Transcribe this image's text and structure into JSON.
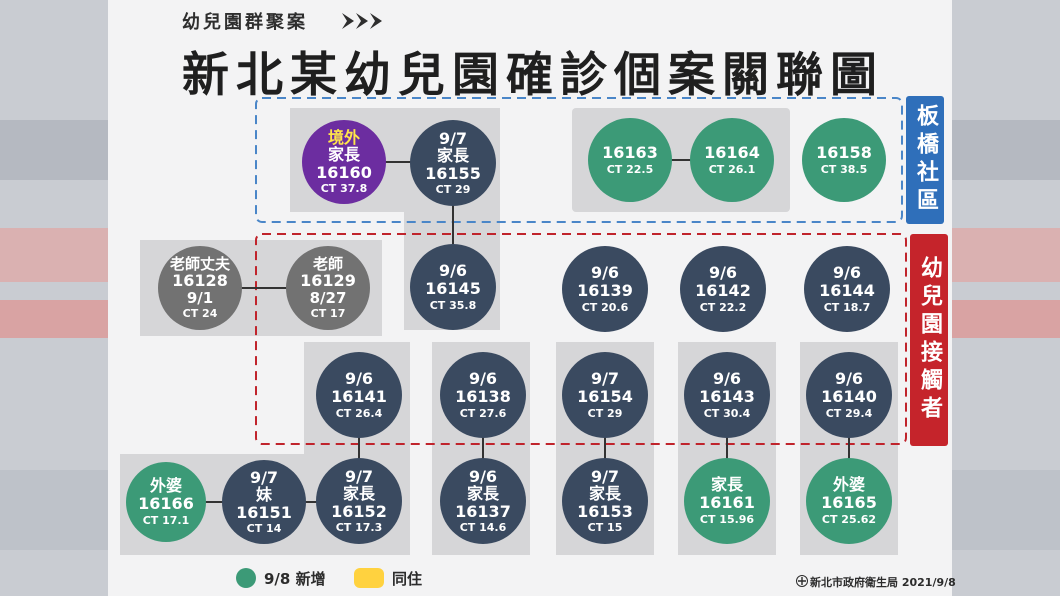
{
  "header": {
    "subtitle": "幼兒園群聚案",
    "title": "新北某幼兒園確診個案關聯圖"
  },
  "zones": {
    "banqiao": "板橋社區",
    "kindergarten": "幼兒園接觸者"
  },
  "nodes": {
    "n16160": {
      "l0": "境外",
      "l1": "家長",
      "l2": "16160",
      "ct": "CT 37.8"
    },
    "n16155": {
      "l1": "9/7",
      "l1b": "家長",
      "l2": "16155",
      "ct": "CT 29"
    },
    "n16163": {
      "l2": "16163",
      "ct": "CT 22.5"
    },
    "n16164": {
      "l2": "16164",
      "ct": "CT 26.1"
    },
    "n16158": {
      "l2": "16158",
      "ct": "CT 38.5"
    },
    "n16128": {
      "l1": "老師丈夫",
      "l2": "16128",
      "l3": "9/1",
      "ct": "CT 24"
    },
    "n16129": {
      "l1": "老師",
      "l2": "16129",
      "l3": "8/27",
      "ct": "CT 17"
    },
    "n16145": {
      "l1": "9/6",
      "l2": "16145",
      "ct": "CT 35.8"
    },
    "n16139": {
      "l1": "9/6",
      "l2": "16139",
      "ct": "CT 20.6"
    },
    "n16142": {
      "l1": "9/6",
      "l2": "16142",
      "ct": "CT 22.2"
    },
    "n16144": {
      "l1": "9/6",
      "l2": "16144",
      "ct": "CT 18.7"
    },
    "n16141": {
      "l1": "9/6",
      "l2": "16141",
      "ct": "CT 26.4"
    },
    "n16138": {
      "l1": "9/6",
      "l2": "16138",
      "ct": "CT 27.6"
    },
    "n16154": {
      "l1": "9/7",
      "l2": "16154",
      "ct": "CT 29"
    },
    "n16143": {
      "l1": "9/6",
      "l2": "16143",
      "ct": "CT 30.4"
    },
    "n16140": {
      "l1": "9/6",
      "l2": "16140",
      "ct": "CT 29.4"
    },
    "n16166": {
      "l1": "外婆",
      "l2": "16166",
      "ct": "CT 17.1"
    },
    "n16151": {
      "l1": "9/7",
      "l1b": "妹",
      "l2": "16151",
      "ct": "CT 14"
    },
    "n16152": {
      "l1": "9/7",
      "l1b": "家長",
      "l2": "16152",
      "ct": "CT 17.3"
    },
    "n16137": {
      "l1": "9/6",
      "l1b": "家長",
      "l2": "16137",
      "ct": "CT 14.6"
    },
    "n16153": {
      "l1": "9/7",
      "l1b": "家長",
      "l2": "16153",
      "ct": "CT 15"
    },
    "n16161": {
      "l1": "家長",
      "l2": "16161",
      "ct": "CT 15.96"
    },
    "n16165": {
      "l1": "外婆",
      "l2": "16165",
      "ct": "CT 25.62"
    }
  },
  "legend": {
    "new_label": "9/8 新增",
    "cohabit_label": "同住"
  },
  "footer": {
    "source": "新北市政府衛生局 2021/9/8"
  },
  "colors": {
    "navy": "#3a4a60",
    "green": "#3c9a77",
    "purple": "#6c2da0",
    "gray": "#727272",
    "blue_zone": "#2f6fba",
    "red_zone": "#c5242b",
    "cohabit_yellow": "#ffd23f"
  }
}
